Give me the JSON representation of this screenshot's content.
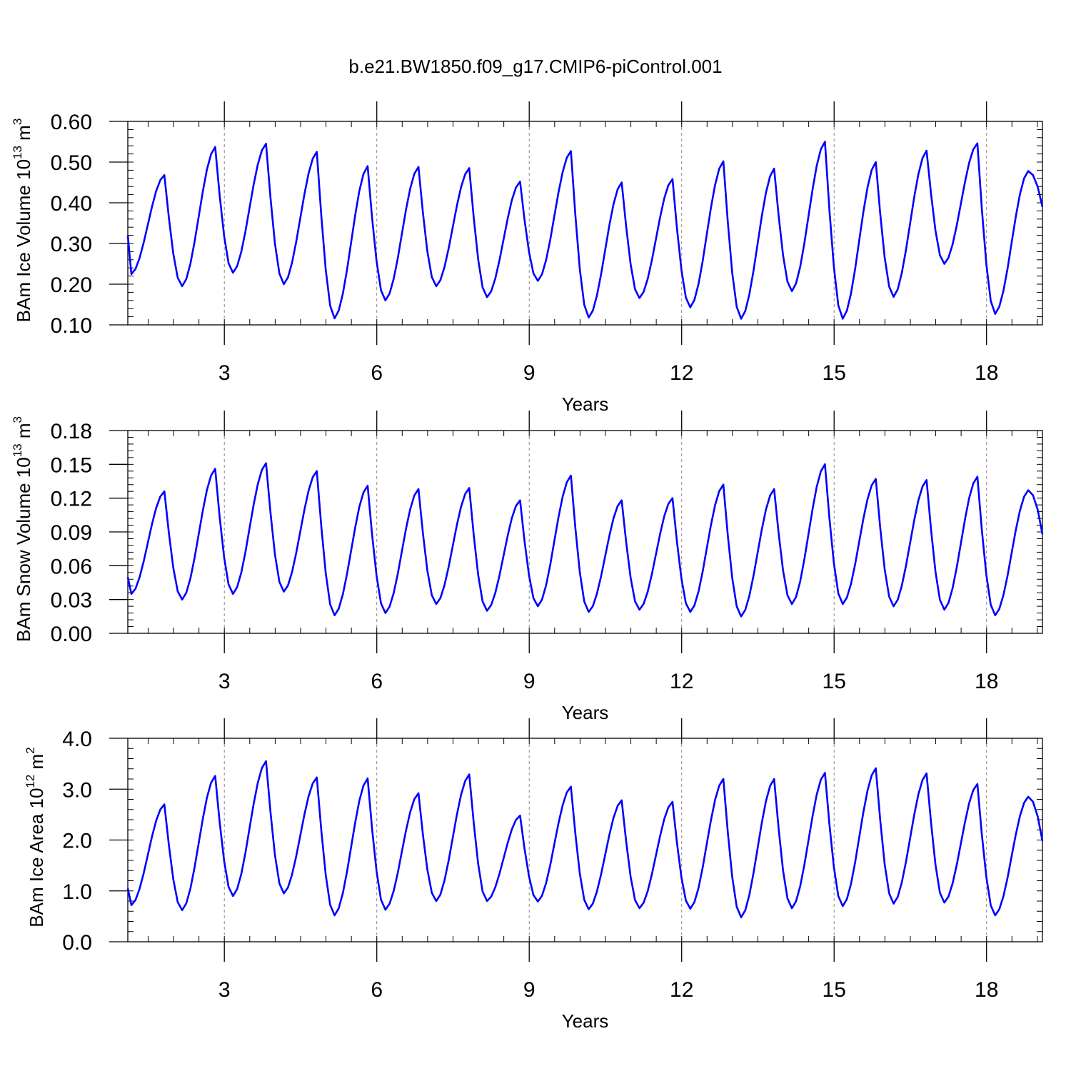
{
  "page": {
    "title": "b.e21.BW1850.f09_g17.CMIP6-piControl.001"
  },
  "style": {
    "line_color": "#0000ff",
    "axis_color": "#000000",
    "guide_color": "#888888"
  },
  "chart_data": [
    {
      "type": "line",
      "name": "ice-volume",
      "ylabel": "BAm Ice Volume 10",
      "ylabel_exponent": "13",
      "ylabel_unit": " m",
      "ylabel_unit_exponent": "3",
      "xlabel": "Years",
      "xlim": [
        1.1,
        19.1
      ],
      "ylim": [
        0.1,
        0.6
      ],
      "x_ticks": [
        3,
        6,
        9,
        12,
        15,
        18
      ],
      "x_tick_labels": [
        "3",
        "6",
        "9",
        "12",
        "15",
        "18"
      ],
      "y_ticks": [
        0.1,
        0.2,
        0.3,
        0.4,
        0.5,
        0.6
      ],
      "y_tick_labels": [
        "0.10",
        "0.20",
        "0.30",
        "0.40",
        "0.50",
        "0.60"
      ],
      "y_minor_step": 0.02,
      "x_minor_step": 0.5,
      "grid": "dashed vertical lines at major x ticks",
      "series": [
        {
          "cycles": [
            {
              "min": 0.225,
              "max": 0.468
            },
            {
              "min": 0.195,
              "max": 0.537
            },
            {
              "min": 0.228,
              "max": 0.545
            },
            {
              "min": 0.2,
              "max": 0.525
            },
            {
              "min": 0.116,
              "max": 0.49
            },
            {
              "min": 0.16,
              "max": 0.488
            },
            {
              "min": 0.195,
              "max": 0.485
            },
            {
              "min": 0.168,
              "max": 0.452
            },
            {
              "min": 0.208,
              "max": 0.527
            },
            {
              "min": 0.118,
              "max": 0.45
            },
            {
              "min": 0.166,
              "max": 0.458
            },
            {
              "min": 0.143,
              "max": 0.502
            },
            {
              "min": 0.115,
              "max": 0.484
            },
            {
              "min": 0.183,
              "max": 0.55
            },
            {
              "min": 0.115,
              "max": 0.5
            },
            {
              "min": 0.169,
              "max": 0.528
            },
            {
              "min": 0.25,
              "max": 0.546
            },
            {
              "min": 0.127,
              "max": 0.478
            }
          ],
          "start": 0.32,
          "end": 0.39
        }
      ]
    },
    {
      "type": "line",
      "name": "snow-volume",
      "ylabel": "BAm Snow Volume 10",
      "ylabel_exponent": "13",
      "ylabel_unit": " m",
      "ylabel_unit_exponent": "3",
      "xlabel": "Years",
      "xlim": [
        1.1,
        19.1
      ],
      "ylim": [
        0.0,
        0.18
      ],
      "x_ticks": [
        3,
        6,
        9,
        12,
        15,
        18
      ],
      "x_tick_labels": [
        "3",
        "6",
        "9",
        "12",
        "15",
        "18"
      ],
      "y_ticks": [
        0.0,
        0.03,
        0.06,
        0.09,
        0.12,
        0.15,
        0.18
      ],
      "y_tick_labels": [
        "0.00",
        "0.03",
        "0.06",
        "0.09",
        "0.12",
        "0.15",
        "0.18"
      ],
      "y_minor_step": 0.006,
      "x_minor_step": 0.5,
      "grid": "dashed vertical lines at major x ticks",
      "series": [
        {
          "cycles": [
            {
              "min": 0.035,
              "max": 0.126
            },
            {
              "min": 0.03,
              "max": 0.146
            },
            {
              "min": 0.035,
              "max": 0.151
            },
            {
              "min": 0.037,
              "max": 0.144
            },
            {
              "min": 0.016,
              "max": 0.131
            },
            {
              "min": 0.018,
              "max": 0.128
            },
            {
              "min": 0.026,
              "max": 0.129
            },
            {
              "min": 0.02,
              "max": 0.118
            },
            {
              "min": 0.024,
              "max": 0.14
            },
            {
              "min": 0.019,
              "max": 0.118
            },
            {
              "min": 0.021,
              "max": 0.12
            },
            {
              "min": 0.019,
              "max": 0.132
            },
            {
              "min": 0.015,
              "max": 0.128
            },
            {
              "min": 0.026,
              "max": 0.15
            },
            {
              "min": 0.026,
              "max": 0.137
            },
            {
              "min": 0.024,
              "max": 0.136
            },
            {
              "min": 0.021,
              "max": 0.139
            },
            {
              "min": 0.016,
              "max": 0.127
            }
          ],
          "start": 0.05,
          "end": 0.088
        }
      ]
    },
    {
      "type": "line",
      "name": "ice-area",
      "ylabel": "BAm Ice Area 10",
      "ylabel_exponent": "12",
      "ylabel_unit": " m",
      "ylabel_unit_exponent": "2",
      "xlabel": "Years",
      "xlim": [
        1.1,
        19.1
      ],
      "ylim": [
        0.0,
        4.0
      ],
      "x_ticks": [
        3,
        6,
        9,
        12,
        15,
        18
      ],
      "x_tick_labels": [
        "3",
        "6",
        "9",
        "12",
        "15",
        "18"
      ],
      "y_ticks": [
        0.0,
        1.0,
        2.0,
        3.0,
        4.0
      ],
      "y_tick_labels": [
        "0.0",
        "1.0",
        "2.0",
        "3.0",
        "4.0"
      ],
      "y_minor_step": 0.2,
      "x_minor_step": 0.5,
      "grid": "dashed vertical lines at major x ticks",
      "series": [
        {
          "cycles": [
            {
              "min": 0.72,
              "max": 2.7
            },
            {
              "min": 0.62,
              "max": 3.26
            },
            {
              "min": 0.9,
              "max": 3.55
            },
            {
              "min": 0.95,
              "max": 3.23
            },
            {
              "min": 0.52,
              "max": 3.21
            },
            {
              "min": 0.63,
              "max": 2.92
            },
            {
              "min": 0.8,
              "max": 3.29
            },
            {
              "min": 0.8,
              "max": 2.48
            },
            {
              "min": 0.79,
              "max": 3.05
            },
            {
              "min": 0.64,
              "max": 2.78
            },
            {
              "min": 0.66,
              "max": 2.75
            },
            {
              "min": 0.65,
              "max": 3.2
            },
            {
              "min": 0.48,
              "max": 3.2
            },
            {
              "min": 0.66,
              "max": 3.32
            },
            {
              "min": 0.7,
              "max": 3.41
            },
            {
              "min": 0.75,
              "max": 3.31
            },
            {
              "min": 0.77,
              "max": 3.1
            },
            {
              "min": 0.52,
              "max": 2.85
            }
          ],
          "start": 1.05,
          "end": 1.98
        }
      ]
    }
  ]
}
